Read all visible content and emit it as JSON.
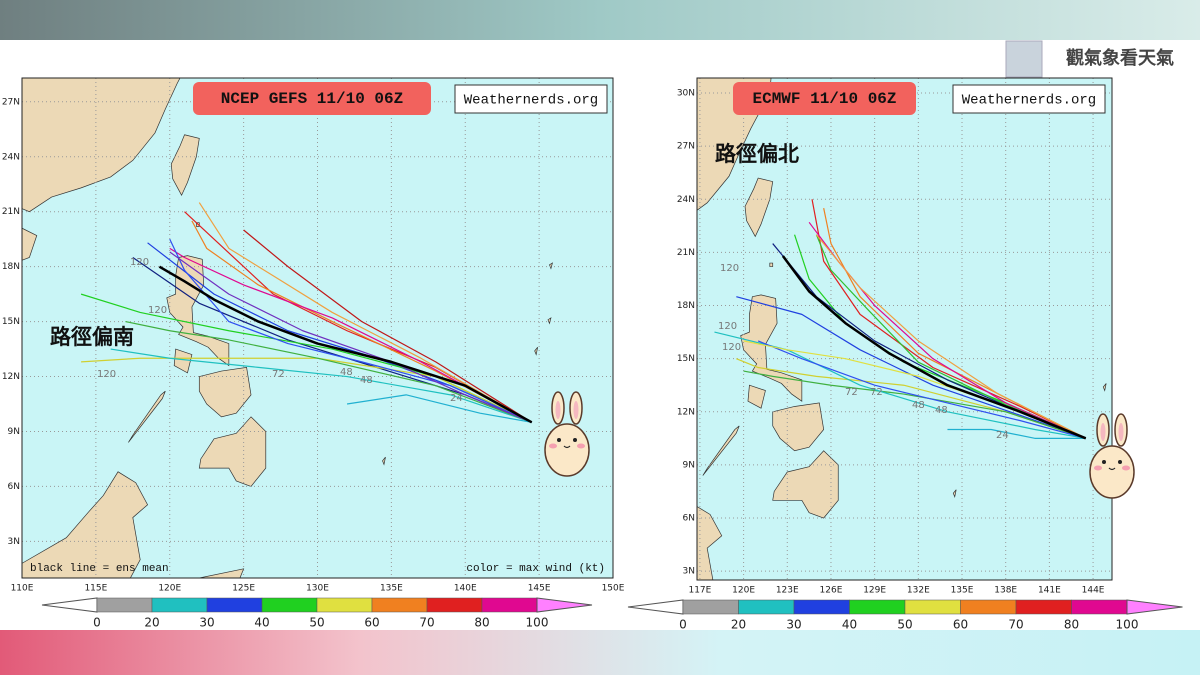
{
  "watermark": "觀氣象看天氣",
  "maps": [
    {
      "title": "NCEP  GEFS  11/10 06Z",
      "source": "Weathernerds.org",
      "annotation": "路徑偏南",
      "footer_left": "black line = ens mean",
      "footer_right": "color = max wind (kt)",
      "xlim": [
        110,
        150
      ],
      "ylim": [
        1,
        28.3
      ],
      "xticks": [
        {
          "value": 110,
          "label": "110E"
        },
        {
          "value": 115,
          "label": "115E"
        },
        {
          "value": 120,
          "label": "120E"
        },
        {
          "value": 125,
          "label": "125E"
        },
        {
          "value": 130,
          "label": "130E"
        },
        {
          "value": 135,
          "label": "135E"
        },
        {
          "value": 140,
          "label": "140E"
        },
        {
          "value": 145,
          "label": "145E"
        },
        {
          "value": 150,
          "label": "150E"
        }
      ],
      "yticks": [
        {
          "value": 3,
          "label": "3N"
        },
        {
          "value": 6,
          "label": "6N"
        },
        {
          "value": 9,
          "label": "9N"
        },
        {
          "value": 12,
          "label": "12N"
        },
        {
          "value": 15,
          "label": "15N"
        },
        {
          "value": 18,
          "label": "18N"
        },
        {
          "value": 21,
          "label": "21N"
        },
        {
          "value": 24,
          "label": "24N"
        },
        {
          "value": 27,
          "label": "27N"
        }
      ],
      "hour_labels": [
        "120",
        "120",
        "120",
        "72",
        "48",
        "48",
        "24"
      ]
    },
    {
      "title": "ECMWF 11/10 06Z",
      "source": "Weathernerds.org",
      "annotation": "路徑偏北",
      "xlim": [
        116.8,
        145.3
      ],
      "ylim": [
        2.5,
        30.85
      ],
      "xticks": [
        {
          "value": 117,
          "label": "117E"
        },
        {
          "value": 120,
          "label": "120E"
        },
        {
          "value": 123,
          "label": "123E"
        },
        {
          "value": 126,
          "label": "126E"
        },
        {
          "value": 129,
          "label": "129E"
        },
        {
          "value": 132,
          "label": "132E"
        },
        {
          "value": 135,
          "label": "135E"
        },
        {
          "value": 138,
          "label": "138E"
        },
        {
          "value": 141,
          "label": "141E"
        },
        {
          "value": 144,
          "label": "144E"
        }
      ],
      "yticks": [
        {
          "value": 3,
          "label": "3N"
        },
        {
          "value": 6,
          "label": "6N"
        },
        {
          "value": 9,
          "label": "9N"
        },
        {
          "value": 12,
          "label": "12N"
        },
        {
          "value": 15,
          "label": "15N"
        },
        {
          "value": 18,
          "label": "18N"
        },
        {
          "value": 21,
          "label": "21N"
        },
        {
          "value": 24,
          "label": "24N"
        },
        {
          "value": 27,
          "label": "27N"
        },
        {
          "value": 30,
          "label": "30N"
        }
      ],
      "hour_labels": [
        "120",
        "120",
        "120",
        "72",
        "72",
        "48",
        "48",
        "24"
      ]
    }
  ],
  "colorbar": {
    "levels": [
      0,
      20,
      30,
      40,
      50,
      60,
      70,
      80,
      100
    ],
    "colors": [
      "#a0a0a0",
      "#20c0c0",
      "#2040e0",
      "#20d020",
      "#e0e040",
      "#f08020",
      "#e02020",
      "#e00890"
    ],
    "under_color": "#ffffff",
    "over_color": "#ff80ff"
  }
}
